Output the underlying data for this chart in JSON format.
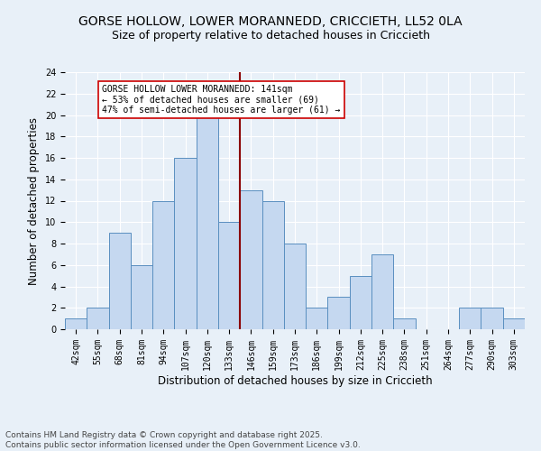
{
  "title": "GORSE HOLLOW, LOWER MORANNEDD, CRICCIETH, LL52 0LA",
  "subtitle": "Size of property relative to detached houses in Criccieth",
  "xlabel": "Distribution of detached houses by size in Criccieth",
  "ylabel": "Number of detached properties",
  "footer": "Contains HM Land Registry data © Crown copyright and database right 2025.\nContains public sector information licensed under the Open Government Licence v3.0.",
  "categories": [
    "42sqm",
    "55sqm",
    "68sqm",
    "81sqm",
    "94sqm",
    "107sqm",
    "120sqm",
    "133sqm",
    "146sqm",
    "159sqm",
    "173sqm",
    "186sqm",
    "199sqm",
    "212sqm",
    "225sqm",
    "238sqm",
    "251sqm",
    "264sqm",
    "277sqm",
    "290sqm",
    "303sqm"
  ],
  "values": [
    1,
    2,
    9,
    6,
    12,
    16,
    20,
    10,
    13,
    12,
    8,
    2,
    3,
    5,
    7,
    1,
    0,
    0,
    2,
    2,
    1
  ],
  "bar_color": "#c5d8f0",
  "bar_edge_color": "#5a8fc0",
  "vline_color": "#8b0000",
  "annotation_text": "GORSE HOLLOW LOWER MORANNEDD: 141sqm\n← 53% of detached houses are smaller (69)\n47% of semi-detached houses are larger (61) →",
  "annotation_box_color": "#ffffff",
  "annotation_box_edge": "#cc0000",
  "ylim": [
    0,
    24
  ],
  "yticks": [
    0,
    2,
    4,
    6,
    8,
    10,
    12,
    14,
    16,
    18,
    20,
    22,
    24
  ],
  "bg_color": "#e8f0f8",
  "plot_bg_color": "#e8f0f8",
  "grid_color": "#ffffff",
  "title_fontsize": 10,
  "subtitle_fontsize": 9,
  "axis_label_fontsize": 8.5,
  "tick_fontsize": 7,
  "annotation_fontsize": 7,
  "footer_fontsize": 6.5
}
